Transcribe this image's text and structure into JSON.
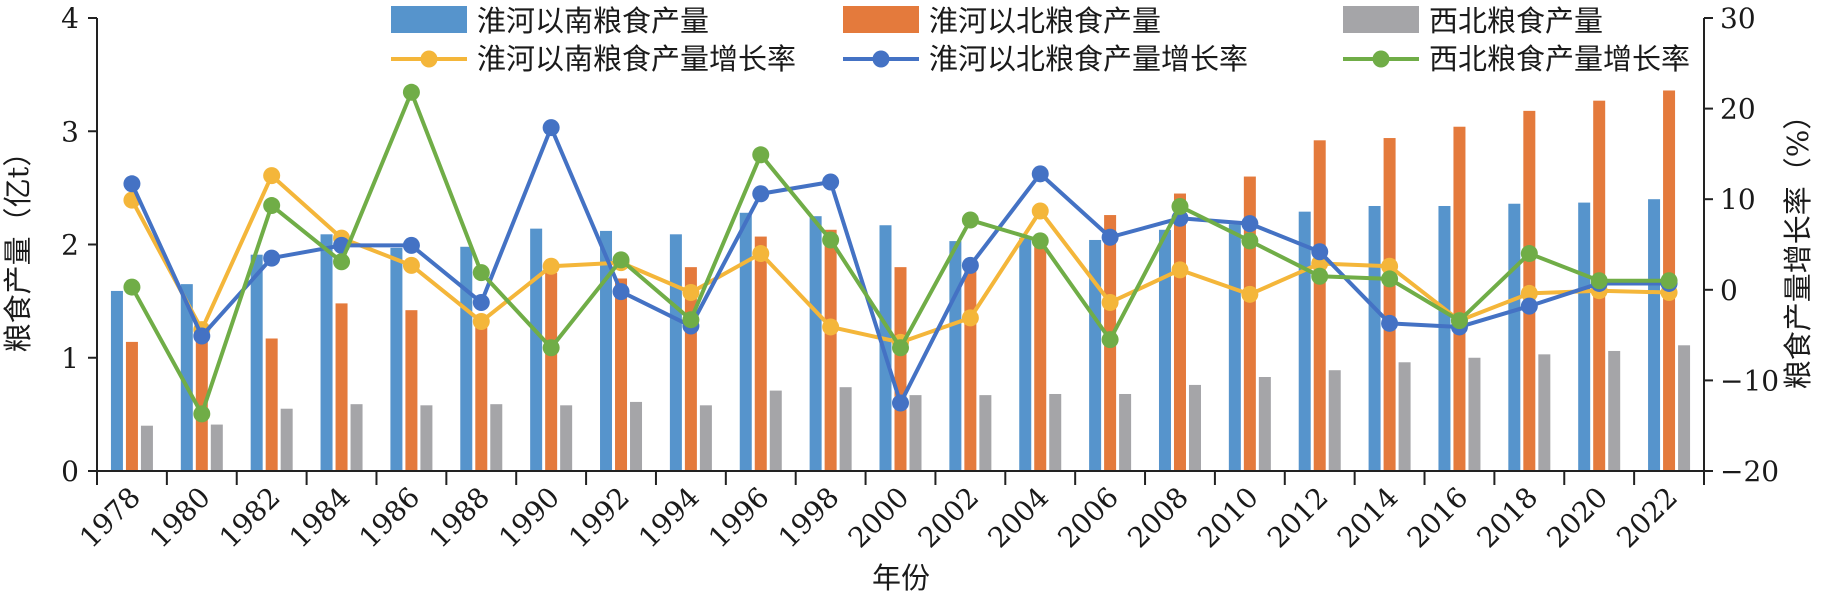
{
  "chart_data": {
    "type": "bar+line",
    "xlabel": "年份",
    "ylabel_left": "粮食产量（亿t）",
    "ylabel_right": "粮食产量增长率（%）",
    "ylim_left": [
      0,
      4
    ],
    "yticks_left": [
      "0",
      "1",
      "2",
      "3",
      "4"
    ],
    "ylim_right": [
      -20,
      30
    ],
    "yticks_right": [
      "−20",
      "−10",
      "0",
      "10",
      "20",
      "30"
    ],
    "grid": false,
    "legend_position": "top",
    "categories": [
      "1978",
      "1980",
      "1982",
      "1984",
      "1986",
      "1988",
      "1990",
      "1992",
      "1994",
      "1996",
      "1998",
      "2000",
      "2002",
      "2004",
      "2006",
      "2008",
      "2010",
      "2012",
      "2014",
      "2016",
      "2018",
      "2020",
      "2022"
    ],
    "bar_series": [
      {
        "name": "淮河以南粮食产量",
        "color": "#5694cc",
        "axis": "left",
        "values": [
          1.59,
          1.65,
          1.91,
          2.09,
          1.97,
          1.98,
          2.14,
          2.12,
          2.09,
          2.28,
          2.25,
          2.17,
          2.03,
          2.06,
          2.04,
          2.13,
          2.18,
          2.29,
          2.34,
          2.34,
          2.36,
          2.37,
          2.4
        ]
      },
      {
        "name": "淮河以北粮食产量",
        "color": "#e47a3c",
        "axis": "left",
        "values": [
          1.14,
          1.2,
          1.17,
          1.48,
          1.42,
          1.35,
          1.75,
          1.7,
          1.8,
          2.07,
          2.13,
          1.8,
          1.78,
          2.0,
          2.26,
          2.45,
          2.6,
          2.92,
          2.94,
          3.04,
          3.18,
          3.27,
          3.36
        ]
      },
      {
        "name": "西北粮食产量",
        "color": "#a5a5a8",
        "axis": "left",
        "values": [
          0.4,
          0.41,
          0.55,
          0.59,
          0.58,
          0.59,
          0.58,
          0.61,
          0.58,
          0.71,
          0.74,
          0.67,
          0.67,
          0.68,
          0.68,
          0.76,
          0.83,
          0.89,
          0.96,
          1.0,
          1.03,
          1.06,
          1.11
        ]
      }
    ],
    "line_series": [
      {
        "name": "淮河以南粮食产量增长率",
        "color": "#f4b63a",
        "axis": "right",
        "values": [
          9.9,
          -4.4,
          12.6,
          5.7,
          2.7,
          -3.5,
          2.6,
          3.0,
          -0.3,
          4.0,
          -4.1,
          -5.8,
          -3.1,
          8.7,
          -1.4,
          2.2,
          -0.5,
          2.9,
          2.6,
          -3.4,
          -0.4,
          -0.1,
          -0.3
        ]
      },
      {
        "name": "淮河以北粮食产量增长率",
        "color": "#4472c4",
        "axis": "right",
        "values": [
          11.7,
          -5.1,
          3.5,
          4.9,
          4.9,
          -1.4,
          17.9,
          -0.2,
          -4.0,
          10.6,
          11.9,
          -12.5,
          2.7,
          12.8,
          5.8,
          7.9,
          7.3,
          4.2,
          -3.7,
          -4.1,
          -1.8,
          0.7,
          0.7
        ]
      },
      {
        "name": "西北粮食产量增长率",
        "color": "#70ad47",
        "axis": "right",
        "values": [
          0.3,
          -13.7,
          9.3,
          3.1,
          21.8,
          1.9,
          -6.4,
          3.3,
          -3.3,
          14.9,
          5.5,
          -6.4,
          7.7,
          5.4,
          -5.5,
          9.2,
          5.4,
          1.5,
          1.2,
          -3.4,
          4.0,
          1.0,
          1.0
        ]
      }
    ]
  }
}
